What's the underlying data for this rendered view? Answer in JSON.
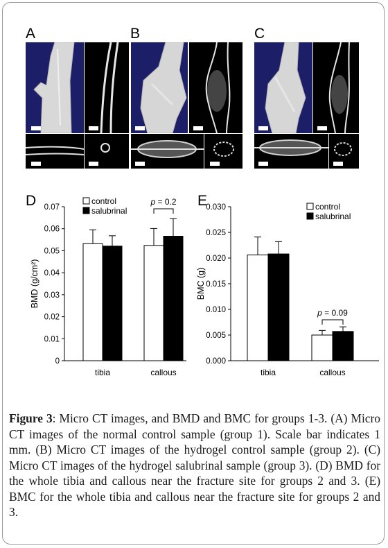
{
  "figure": {
    "panels": {
      "a": {
        "letter": "A"
      },
      "b": {
        "letter": "B"
      },
      "c": {
        "letter": "C"
      },
      "d": {
        "letter": "D"
      },
      "e": {
        "letter": "E"
      }
    },
    "caption": {
      "lead": "Figure 3",
      "text": ": Micro CT images, and BMD and BMC for groups 1-3. (A) Micro CT images of the normal control sample (group 1). Scale bar indicates 1 mm. (B) Micro CT images of the hydrogel control sample (group 2). (C) Micro CT images of the hydrogel salubrinal sample (group 3). (D) BMD for the whole tibia and callous near the fracture site for groups 2 and 3. (E) BMC for the whole tibia and callous near the fracture site for groups 2 and 3."
    }
  },
  "colors": {
    "background_panel": "#1c1f68",
    "control_bar": "#ffffff",
    "salubrinal_bar": "#000000"
  },
  "chart_data": [
    {
      "type": "bar",
      "panel": "D",
      "ylabel": "BMD (g/cm²)",
      "ylim": [
        0,
        0.07
      ],
      "yticks": [
        "0",
        "0.01",
        "0.02",
        "0.03",
        "0.04",
        "0.05",
        "0.06",
        "0.07"
      ],
      "categories": [
        "tibia",
        "callous"
      ],
      "series": [
        {
          "name": "control",
          "values": [
            0.0532,
            0.0524
          ],
          "errors": [
            0.0063,
            0.0077
          ]
        },
        {
          "name": "salubrinal",
          "values": [
            0.0521,
            0.0566
          ],
          "errors": [
            0.0047,
            0.008
          ]
        }
      ],
      "annotation": {
        "text": "p = 0.2",
        "category": "callous"
      },
      "legend": "top-left"
    },
    {
      "type": "bar",
      "panel": "E",
      "ylabel": "BMC (g)",
      "ylim": [
        0,
        0.03
      ],
      "yticks": [
        "0.000",
        "0.005",
        "0.010",
        "0.015",
        "0.020",
        "0.025",
        "0.030"
      ],
      "categories": [
        "tibia",
        "callous"
      ],
      "series": [
        {
          "name": "control",
          "values": [
            0.0206,
            0.005
          ],
          "errors": [
            0.0035,
            0.0009
          ]
        },
        {
          "name": "salubrinal",
          "values": [
            0.0208,
            0.0057
          ],
          "errors": [
            0.0024,
            0.0009
          ]
        }
      ],
      "annotation": {
        "text": "p = 0.09",
        "category": "callous"
      },
      "legend": "top-right"
    }
  ]
}
